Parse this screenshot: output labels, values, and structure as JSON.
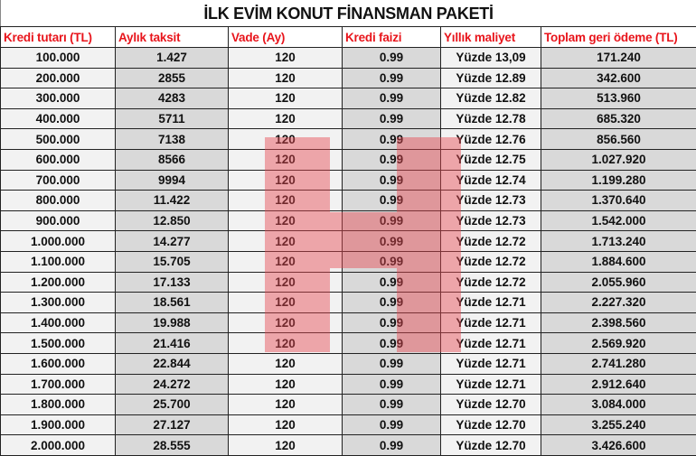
{
  "title": "İLK EVİM KONUT FİNANSMAN PAKETİ",
  "columns": [
    "Kredi tutarı (TL)",
    "Aylık taksit",
    "Vade (Ay)",
    "Kredi faizi",
    "Yıllık maliyet",
    "Toplam geri ödeme (TL)"
  ],
  "rows": [
    [
      "100.000",
      "1.427",
      "120",
      "0.99",
      "Yüzde 13,09",
      "171.240"
    ],
    [
      "200.000",
      "2855",
      "120",
      "0.99",
      "Yüzde 12.89",
      "342.600"
    ],
    [
      "300.000",
      "4283",
      "120",
      "0.99",
      "Yüzde 12.82",
      "513.960"
    ],
    [
      "400.000",
      "5711",
      "120",
      "0.99",
      "Yüzde 12.78",
      "685.320"
    ],
    [
      "500.000",
      "7138",
      "120",
      "0.99",
      "Yüzde 12.76",
      "856.560"
    ],
    [
      "600.000",
      "8566",
      "120",
      "0.99",
      "Yüzde 12.75",
      "1.027.920"
    ],
    [
      "700.000",
      "9994",
      "120",
      "0.99",
      "Yüzde 12.74",
      "1.199.280"
    ],
    [
      "800.000",
      "11.422",
      "120",
      "0.99",
      "Yüzde 12.73",
      "1.370.640"
    ],
    [
      "900.000",
      "12.850",
      "120",
      "0.99",
      "Yüzde 12.73",
      "1.542.000"
    ],
    [
      "1.000.000",
      "14.277",
      "120",
      "0.99",
      "Yüzde 12.72",
      "1.713.240"
    ],
    [
      "1.100.000",
      "15.705",
      "120",
      "0.99",
      "Yüzde 12.72",
      "1.884.600"
    ],
    [
      "1.200.000",
      "17.133",
      "120",
      "0.99",
      "Yüzde 12.72",
      "2.055.960"
    ],
    [
      "1.300.000",
      "18.561",
      "120",
      "0.99",
      "Yüzde 12.71",
      "2.227.320"
    ],
    [
      "1.400.000",
      "19.988",
      "120",
      "0.99",
      "Yüzde 12.71",
      "2.398.560"
    ],
    [
      "1.500.000",
      "21.416",
      "120",
      "0.99",
      "Yüzde 12.71",
      "2.569.920"
    ],
    [
      "1.600.000",
      "22.844",
      "120",
      "0.99",
      "Yüzde 12.71",
      "2.741.280"
    ],
    [
      "1.700.000",
      "24.272",
      "120",
      "0.99",
      "Yüzde 12.71",
      "2.912.640"
    ],
    [
      "1.800.000",
      "25.700",
      "120",
      "0.99",
      "Yüzde 12.70",
      "3.084.000"
    ],
    [
      "1.900.000",
      "27.127",
      "120",
      "0.99",
      "Yüzde 12.70",
      "3.255.240"
    ],
    [
      "2.000.000",
      "28.555",
      "120",
      "0.99",
      "Yüzde 12.70",
      "3.426.600"
    ]
  ],
  "colors": {
    "header_text": "#e8141b",
    "light_cell": "#f2f2f2",
    "dark_cell": "#d9d9d9",
    "watermark": "#e64650"
  },
  "watermark_logo": "H"
}
